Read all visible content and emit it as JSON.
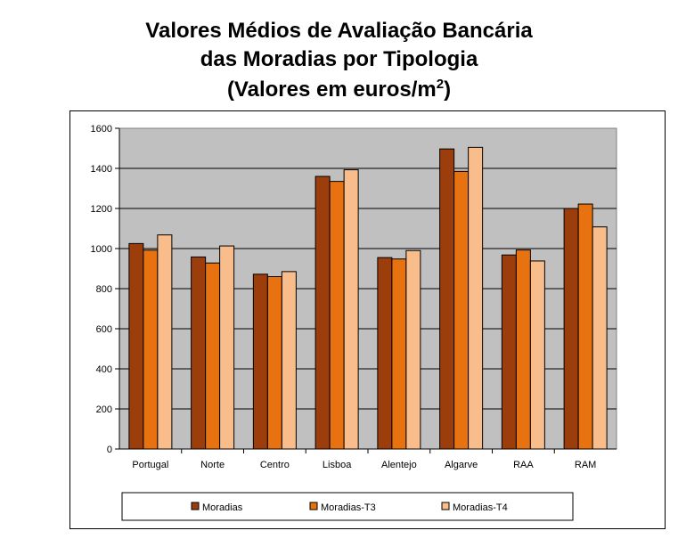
{
  "title_line1": "Valores Médios de Avaliação Bancária",
  "title_line2": "das Moradias por Tipologia",
  "title_line3_main": "(Valores em euros/m",
  "title_line3_sup": "2",
  "title_line3_end": ")",
  "chart_data": {
    "type": "bar",
    "title": "Valores Médios de Avaliação Bancária das Moradias por Tipologia (Valores em euros/m2)",
    "categories": [
      "Portugal",
      "Norte",
      "Centro",
      "Lisboa",
      "Alentejo",
      "Algarve",
      "RAA",
      "RAM"
    ],
    "series": [
      {
        "name": "Moradias",
        "color": "#9b3e0c",
        "values": [
          1025,
          958,
          872,
          1360,
          955,
          1497,
          968,
          1200
        ]
      },
      {
        "name": "Moradias-T3",
        "color": "#e8720f",
        "values": [
          992,
          928,
          860,
          1335,
          948,
          1385,
          993,
          1222
        ]
      },
      {
        "name": "Moradias-T4",
        "color": "#f9bd8c",
        "values": [
          1068,
          1013,
          885,
          1393,
          990,
          1505,
          938,
          1108
        ]
      }
    ],
    "ylim": [
      0,
      1600
    ],
    "yticks": [
      0,
      200,
      400,
      600,
      800,
      1000,
      1200,
      1400,
      1600
    ],
    "grid": true,
    "plot_background": "#c0c0c0",
    "legend_position": "bottom"
  }
}
